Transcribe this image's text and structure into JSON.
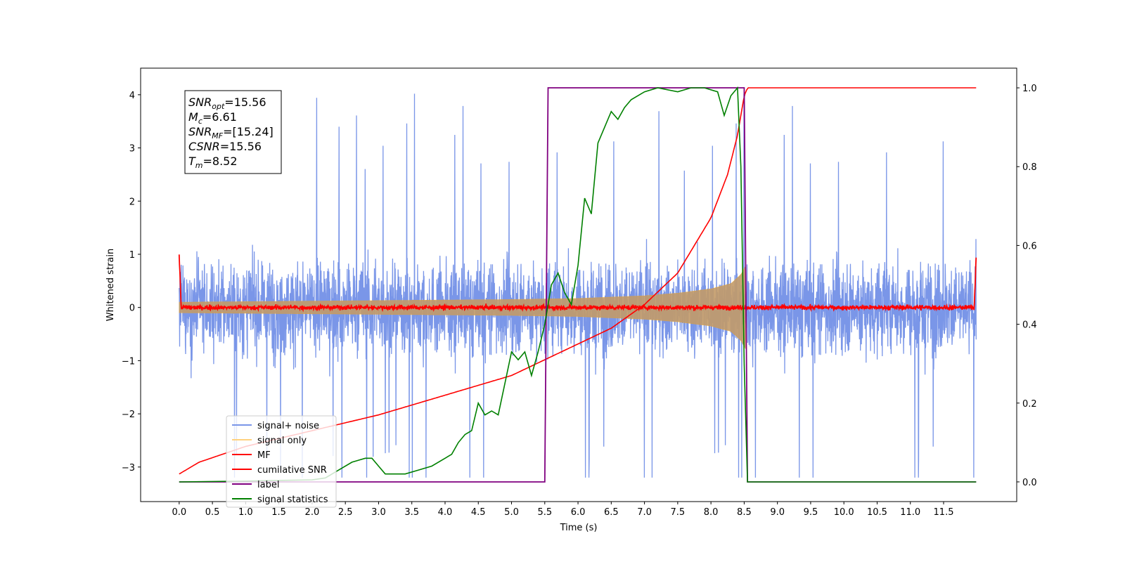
{
  "chart_data": {
    "type": "line",
    "xlabel": "Time (s)",
    "ylabel": "Whitened strain",
    "xlim": [
      -0.58,
      12.6
    ],
    "ylim": [
      -3.65,
      4.5
    ],
    "ylim_right": [
      -0.05,
      1.05
    ],
    "x_ticks": [
      0.0,
      0.5,
      1.0,
      1.5,
      2.0,
      2.5,
      3.0,
      3.5,
      4.0,
      4.5,
      5.0,
      5.5,
      6.0,
      6.5,
      7.0,
      7.5,
      8.0,
      8.5,
      9.0,
      9.5,
      10.0,
      10.5,
      11.0,
      11.5
    ],
    "x_tick_labels": [
      "0.0",
      "0.5",
      "1.0",
      "1.5",
      "2.0",
      "2.5",
      "3.0",
      "3.5",
      "4.0",
      "4.5",
      "5.0",
      "5.5",
      "6.0",
      "6.5",
      "7.0",
      "7.5",
      "8.0",
      "8.5",
      "9.0",
      "9.5",
      "10.0",
      "10.5",
      "11.0",
      "11.5"
    ],
    "y_ticks": [
      -3,
      -2,
      -1,
      0,
      1,
      2,
      3,
      4
    ],
    "y_tick_labels": [
      "−3",
      "−2",
      "−1",
      "0",
      "1",
      "2",
      "3",
      "4"
    ],
    "y_right_ticks": [
      0.0,
      0.2,
      0.4,
      0.6,
      0.8,
      1.0
    ],
    "y_right_tick_labels": [
      "0.0",
      "0.2",
      "0.4",
      "0.6",
      "0.8",
      "1.0"
    ],
    "grid": false,
    "legend_placement": "lower-left",
    "duration": 11.99,
    "merger_time": 8.52,
    "series": [
      {
        "name": "signal+ noise",
        "axis": "left",
        "color": "#7a96e8",
        "kind": "noise",
        "amplitude": 1.1,
        "spike_max": 4.2
      },
      {
        "name": "signal only",
        "axis": "left",
        "color": "#ffa500",
        "kind": "chirp_envelope",
        "envelope": {
          "x": [
            0.0,
            3.0,
            5.0,
            6.0,
            7.0,
            7.5,
            8.0,
            8.3,
            8.45,
            8.52
          ],
          "y": [
            0.1,
            0.13,
            0.15,
            0.17,
            0.22,
            0.27,
            0.35,
            0.45,
            0.62,
            0.78
          ]
        }
      },
      {
        "name": "MF",
        "axis": "left",
        "color": "#ff0000",
        "kind": "noise_small",
        "x": [
          0.0,
          0.03,
          11.96,
          11.99
        ],
        "y": [
          1.0,
          0.0,
          0.0,
          0.95
        ],
        "amplitude": 0.06
      },
      {
        "name": "cumilative SNR",
        "axis": "right",
        "color": "#ff0000",
        "x": [
          0.0,
          0.3,
          1.0,
          2.0,
          3.0,
          4.0,
          5.0,
          6.0,
          6.5,
          7.0,
          7.5,
          8.0,
          8.25,
          8.4,
          8.5,
          8.55,
          11.99
        ],
        "y": [
          0.02,
          0.05,
          0.09,
          0.13,
          0.17,
          0.22,
          0.27,
          0.35,
          0.39,
          0.45,
          0.53,
          0.67,
          0.78,
          0.88,
          0.98,
          1.0,
          1.0
        ]
      },
      {
        "name": "label",
        "axis": "right",
        "color": "#800080",
        "x": [
          0.0,
          5.5,
          5.55,
          8.5,
          8.55,
          11.99
        ],
        "y": [
          0.0,
          0.0,
          1.0,
          1.0,
          0.0,
          0.0
        ]
      },
      {
        "name": "signal statistics",
        "axis": "right",
        "color": "#008000",
        "x": [
          0.0,
          1.0,
          2.0,
          2.2,
          2.4,
          2.6,
          2.8,
          2.9,
          3.0,
          3.1,
          3.2,
          3.4,
          3.6,
          3.8,
          4.0,
          4.1,
          4.2,
          4.3,
          4.4,
          4.5,
          4.6,
          4.7,
          4.8,
          4.9,
          5.0,
          5.1,
          5.2,
          5.3,
          5.4,
          5.5,
          5.6,
          5.7,
          5.8,
          5.9,
          6.0,
          6.1,
          6.2,
          6.3,
          6.4,
          6.5,
          6.6,
          6.7,
          6.8,
          7.0,
          7.2,
          7.5,
          7.7,
          7.9,
          8.1,
          8.2,
          8.3,
          8.4,
          8.45,
          8.5,
          8.55,
          9.0,
          11.99
        ],
        "y": [
          0.0,
          0.002,
          0.005,
          0.01,
          0.03,
          0.05,
          0.06,
          0.06,
          0.04,
          0.02,
          0.02,
          0.02,
          0.03,
          0.04,
          0.06,
          0.07,
          0.1,
          0.12,
          0.13,
          0.2,
          0.17,
          0.18,
          0.17,
          0.25,
          0.33,
          0.31,
          0.33,
          0.27,
          0.33,
          0.4,
          0.5,
          0.53,
          0.48,
          0.45,
          0.55,
          0.72,
          0.68,
          0.86,
          0.9,
          0.94,
          0.92,
          0.95,
          0.97,
          0.99,
          1.0,
          0.99,
          1.0,
          1.0,
          0.99,
          0.93,
          0.98,
          1.0,
          0.8,
          0.3,
          0.0,
          0.0,
          0.0
        ]
      }
    ],
    "annotation": {
      "lines": [
        {
          "base": "SNR",
          "sub": "opt",
          "value": "=15.56"
        },
        {
          "base": "M",
          "sub": "c",
          "value": "=6.61"
        },
        {
          "base": "SNR",
          "sub": "MF",
          "value": "=[15.24]"
        },
        {
          "base": "CSNR",
          "sub": "",
          "value": "=15.56"
        },
        {
          "base": "T",
          "sub": "m",
          "value": "=8.52"
        }
      ]
    }
  }
}
